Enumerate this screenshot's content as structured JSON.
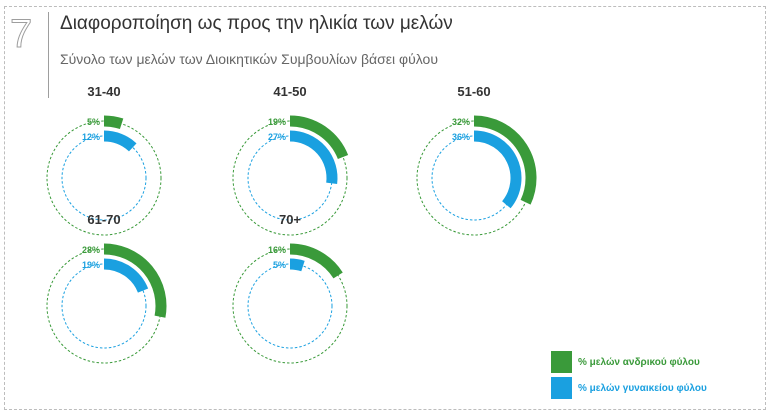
{
  "header": {
    "section_number": "7",
    "title": "Διαφοροποίηση ως προς την ηλικία των μελών",
    "subtitle": "Σύνολο των μελών των Διοικητικών Συμβουλίων βάσει φύλου"
  },
  "colors": {
    "male": "#3a9a3a",
    "female": "#1aa0e0"
  },
  "legend": [
    {
      "label": "% μελών ανδρικού φύλου",
      "color": "#3a9a3a"
    },
    {
      "label": "% μελών γυναικείου φύλου",
      "color": "#1aa0e0"
    }
  ],
  "chart_data": {
    "type": "radial-bar",
    "series": [
      {
        "name": "% μελών ανδρικού φύλου"
      },
      {
        "name": "% μελών γυναικείου φύλου"
      }
    ],
    "groups": [
      {
        "label": "31-40",
        "male": 5,
        "male_label": "5%",
        "female": 12,
        "female_label": "12%"
      },
      {
        "label": "41-50",
        "male": 19,
        "male_label": "19%",
        "female": 27,
        "female_label": "27%"
      },
      {
        "label": "51-60",
        "male": 32,
        "male_label": "32%",
        "female": 36,
        "female_label": "36%"
      },
      {
        "label": "61-70",
        "male": 28,
        "male_label": "28%",
        "female": 19,
        "female_label": "19%"
      },
      {
        "label": "70+",
        "male": 16,
        "male_label": "16%",
        "female": 5,
        "female_label": "5%"
      }
    ]
  }
}
